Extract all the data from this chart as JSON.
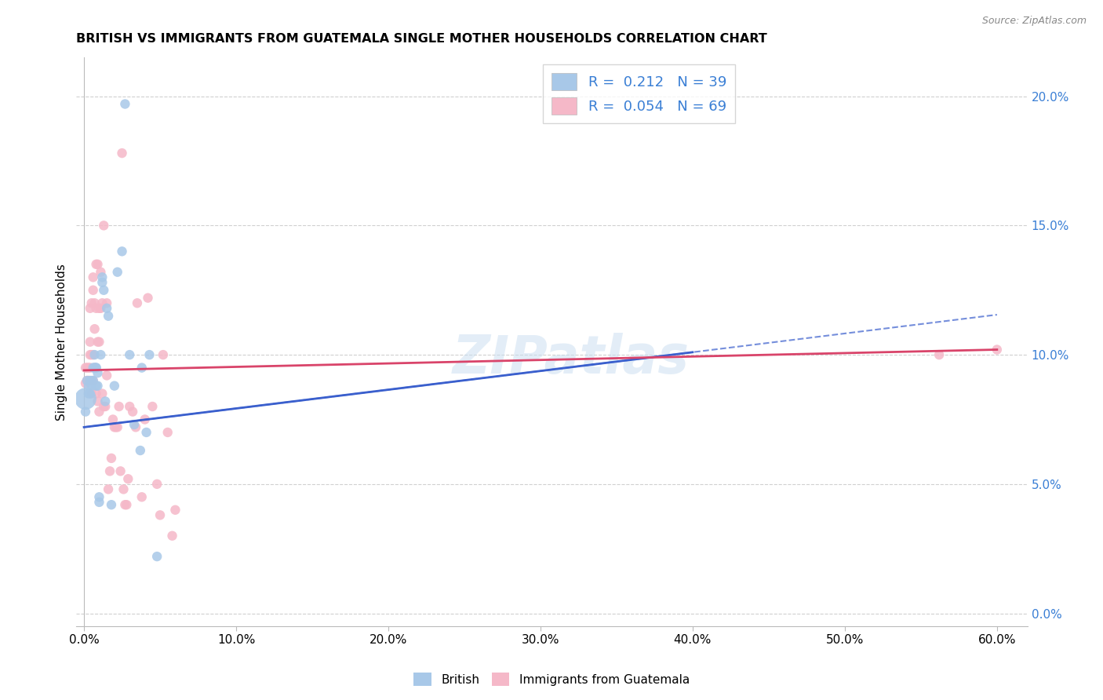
{
  "title": "BRITISH VS IMMIGRANTS FROM GUATEMALA SINGLE MOTHER HOUSEHOLDS CORRELATION CHART",
  "source": "Source: ZipAtlas.com",
  "ylabel": "Single Mother Households",
  "xlabel_ticks": [
    "0.0%",
    "10.0%",
    "20.0%",
    "30.0%",
    "40.0%",
    "50.0%",
    "60.0%"
  ],
  "xlabel_vals": [
    0.0,
    0.1,
    0.2,
    0.3,
    0.4,
    0.5,
    0.6
  ],
  "ylabel_ticks": [
    "0.0%",
    "5.0%",
    "10.0%",
    "15.0%",
    "20.0%"
  ],
  "ylabel_vals": [
    0.0,
    0.05,
    0.1,
    0.15,
    0.2
  ],
  "xlim": [
    -0.005,
    0.62
  ],
  "ylim": [
    -0.005,
    0.215
  ],
  "british_R": "0.212",
  "british_N": "39",
  "guatemala_R": "0.054",
  "guatemala_N": "69",
  "legend_label_british": "British",
  "legend_label_guatemala": "Immigrants from Guatemala",
  "british_color": "#a8c8e8",
  "british_line_color": "#3a5fcd",
  "guatemala_color": "#f5b8c8",
  "guatemala_line_color": "#d9446a",
  "watermark_text": "ZIPatlas",
  "british_trendline": [
    0.0,
    0.072,
    0.4,
    0.101
  ],
  "guatemala_trendline": [
    0.0,
    0.094,
    0.6,
    0.102
  ],
  "british_scatter_x": [
    0.001,
    0.001,
    0.002,
    0.003,
    0.003,
    0.004,
    0.004,
    0.005,
    0.005,
    0.006,
    0.006,
    0.007,
    0.007,
    0.008,
    0.008,
    0.008,
    0.009,
    0.009,
    0.01,
    0.01,
    0.011,
    0.012,
    0.012,
    0.013,
    0.014,
    0.015,
    0.016,
    0.018,
    0.02,
    0.022,
    0.025,
    0.027,
    0.03,
    0.033,
    0.037,
    0.038,
    0.041,
    0.043,
    0.048
  ],
  "british_scatter_y": [
    0.083,
    0.078,
    0.09,
    0.088,
    0.085,
    0.085,
    0.09,
    0.09,
    0.088,
    0.09,
    0.095,
    0.095,
    0.1,
    0.095,
    0.095,
    0.088,
    0.093,
    0.088,
    0.045,
    0.043,
    0.1,
    0.128,
    0.13,
    0.125,
    0.082,
    0.118,
    0.115,
    0.042,
    0.088,
    0.132,
    0.14,
    0.197,
    0.1,
    0.073,
    0.063,
    0.095,
    0.07,
    0.1,
    0.022
  ],
  "british_scatter_size": [
    400,
    80,
    80,
    80,
    80,
    80,
    80,
    80,
    80,
    80,
    80,
    80,
    80,
    80,
    80,
    80,
    80,
    80,
    80,
    80,
    80,
    80,
    80,
    80,
    80,
    80,
    80,
    80,
    80,
    80,
    80,
    80,
    80,
    80,
    80,
    80,
    80,
    80,
    80
  ],
  "guatemala_scatter_x": [
    0.001,
    0.001,
    0.002,
    0.002,
    0.003,
    0.003,
    0.003,
    0.004,
    0.004,
    0.004,
    0.004,
    0.005,
    0.005,
    0.005,
    0.006,
    0.006,
    0.006,
    0.006,
    0.007,
    0.007,
    0.007,
    0.008,
    0.008,
    0.008,
    0.009,
    0.009,
    0.009,
    0.01,
    0.01,
    0.01,
    0.011,
    0.011,
    0.012,
    0.012,
    0.013,
    0.013,
    0.014,
    0.015,
    0.015,
    0.016,
    0.017,
    0.018,
    0.019,
    0.02,
    0.021,
    0.022,
    0.023,
    0.024,
    0.025,
    0.026,
    0.027,
    0.028,
    0.029,
    0.03,
    0.032,
    0.034,
    0.035,
    0.038,
    0.04,
    0.042,
    0.045,
    0.048,
    0.05,
    0.052,
    0.055,
    0.058,
    0.06,
    0.562,
    0.6
  ],
  "guatemala_scatter_y": [
    0.089,
    0.095,
    0.09,
    0.095,
    0.09,
    0.09,
    0.095,
    0.095,
    0.1,
    0.105,
    0.118,
    0.085,
    0.1,
    0.12,
    0.09,
    0.1,
    0.125,
    0.13,
    0.095,
    0.11,
    0.12,
    0.085,
    0.118,
    0.135,
    0.135,
    0.105,
    0.082,
    0.078,
    0.105,
    0.118,
    0.118,
    0.132,
    0.085,
    0.12,
    0.15,
    0.08,
    0.08,
    0.092,
    0.12,
    0.048,
    0.055,
    0.06,
    0.075,
    0.072,
    0.072,
    0.072,
    0.08,
    0.055,
    0.178,
    0.048,
    0.042,
    0.042,
    0.052,
    0.08,
    0.078,
    0.072,
    0.12,
    0.045,
    0.075,
    0.122,
    0.08,
    0.05,
    0.038,
    0.1,
    0.07,
    0.03,
    0.04,
    0.1,
    0.102
  ],
  "guatemala_scatter_size": [
    80,
    80,
    80,
    80,
    80,
    80,
    80,
    80,
    80,
    80,
    80,
    80,
    80,
    80,
    80,
    80,
    80,
    80,
    80,
    80,
    80,
    80,
    80,
    80,
    80,
    80,
    80,
    80,
    80,
    80,
    80,
    80,
    80,
    80,
    80,
    80,
    80,
    80,
    80,
    80,
    80,
    80,
    80,
    80,
    80,
    80,
    80,
    80,
    80,
    80,
    80,
    80,
    80,
    80,
    80,
    80,
    80,
    80,
    80,
    80,
    80,
    80,
    80,
    80,
    80,
    80,
    80,
    80,
    80
  ]
}
